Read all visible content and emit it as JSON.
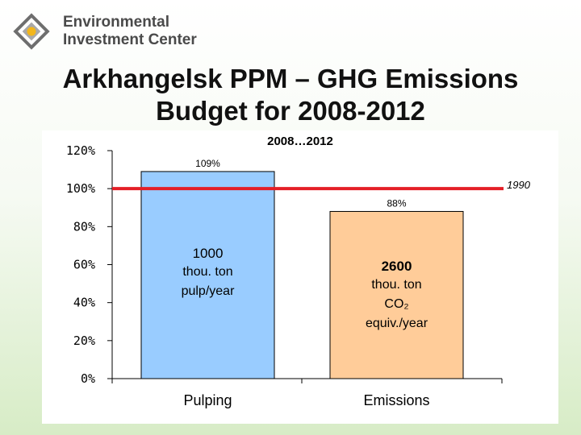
{
  "header": {
    "org_line1": "Environmental",
    "org_line2": "Investment Center",
    "title_line1": "Arkhangelsk PPM – GHG Emissions",
    "title_line2": "Budget for 2008-2012"
  },
  "icons": {
    "logo": "eic-logo-icon"
  },
  "colors": {
    "pulping_bar": "#99ccff",
    "emissions_bar": "#ffcc99",
    "reference_line": "#e41e26",
    "logo_dark": "#6e6e6e",
    "logo_accent": "#f2b61c"
  },
  "chart_data": {
    "type": "bar",
    "title": "2008…2012",
    "categories": [
      "Pulping",
      "Emissions"
    ],
    "values": [
      109,
      88
    ],
    "value_labels": [
      "109%",
      "88%"
    ],
    "y_tick_labels": [
      "0%",
      "20%",
      "40%",
      "60%",
      "80%",
      "100%",
      "120%"
    ],
    "ylim": [
      0,
      120
    ],
    "reference_line": {
      "value": 100,
      "label": "1990"
    },
    "bar_annotations": [
      {
        "amount": "1000",
        "lines": [
          "thou. ton",
          "pulp/year"
        ]
      },
      {
        "amount": "2600",
        "lines": [
          "thou. ton",
          "CO₂",
          "equiv./year"
        ]
      }
    ],
    "grid": false,
    "legend": "none"
  }
}
